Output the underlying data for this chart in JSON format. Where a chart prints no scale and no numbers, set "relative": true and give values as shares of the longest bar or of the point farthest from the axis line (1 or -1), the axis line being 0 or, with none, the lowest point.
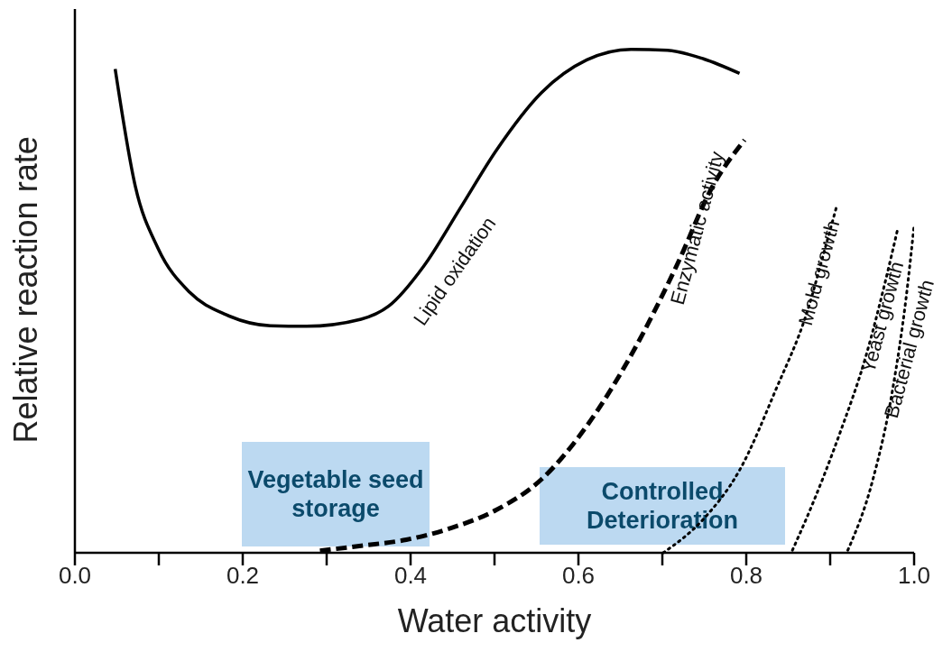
{
  "chart_data": {
    "type": "line",
    "relative": true,
    "xlabel": "Water activity",
    "ylabel": "Relative reaction rate",
    "xlim": [
      0,
      1
    ],
    "xticks": [
      {
        "value": 0,
        "label": "0.0"
      },
      {
        "value": 0.1,
        "label": null
      },
      {
        "value": 0.2,
        "label": "0.2"
      },
      {
        "value": 0.3,
        "label": null
      },
      {
        "value": 0.4,
        "label": "0.4"
      },
      {
        "value": 0.5,
        "label": null
      },
      {
        "value": 0.6,
        "label": "0.6"
      },
      {
        "value": 0.7,
        "label": null
      },
      {
        "value": 0.8,
        "label": "0.8"
      },
      {
        "value": 0.9,
        "label": null
      },
      {
        "value": 1,
        "label": "1.0"
      }
    ],
    "grid": false,
    "legend": false,
    "marker": "none",
    "annotations": [
      "Vegetable seed storage",
      "Controlled Deterioration"
    ],
    "series": [
      {
        "name": "Lipid oxidation",
        "color": "#000000",
        "line_style": "solid",
        "x": [
          0.048,
          0.072,
          0.099,
          0.137,
          0.18,
          0.233,
          0.276,
          0.341,
          0.374,
          0.416,
          0.459,
          0.502,
          0.556,
          0.61,
          0.663,
          0.706,
          0.749,
          0.792
        ],
        "values": [
          0.961,
          0.728,
          0.605,
          0.517,
          0.473,
          0.451,
          0.45,
          0.464,
          0.49,
          0.57,
          0.684,
          0.799,
          0.914,
          0.979,
          1,
          0.998,
          0.981,
          0.952
        ]
      },
      {
        "name": "Enzymatic activity",
        "color": "#000000",
        "line_style": "dashed",
        "x": [
          0.292,
          0.341,
          0.395,
          0.448,
          0.502,
          0.556,
          0.61,
          0.663,
          0.717,
          0.76,
          0.798
        ],
        "values": [
          0.004,
          0.014,
          0.026,
          0.049,
          0.085,
          0.146,
          0.252,
          0.393,
          0.57,
          0.728,
          0.82
        ]
      },
      {
        "name": "Mold growth",
        "color": "#000000",
        "line_style": "dotted",
        "x": [
          0.701,
          0.749,
          0.792,
          0.835,
          0.873,
          0.894,
          0.908
        ],
        "values": [
          0,
          0.067,
          0.164,
          0.323,
          0.481,
          0.605,
          0.69
        ]
      },
      {
        "name": "Yeast growth",
        "color": "#000000",
        "line_style": "dotted",
        "x": [
          0.855,
          0.878,
          0.911,
          0.943,
          0.965,
          0.98
        ],
        "values": [
          0.005,
          0.093,
          0.235,
          0.393,
          0.534,
          0.64
        ]
      },
      {
        "name": "Bacterial growth",
        "color": "#000000",
        "line_style": "dotted",
        "x": [
          0.921,
          0.95,
          0.975,
          0.99,
          1
        ],
        "values": [
          0.005,
          0.14,
          0.33,
          0.5,
          0.65
        ]
      }
    ]
  }
}
